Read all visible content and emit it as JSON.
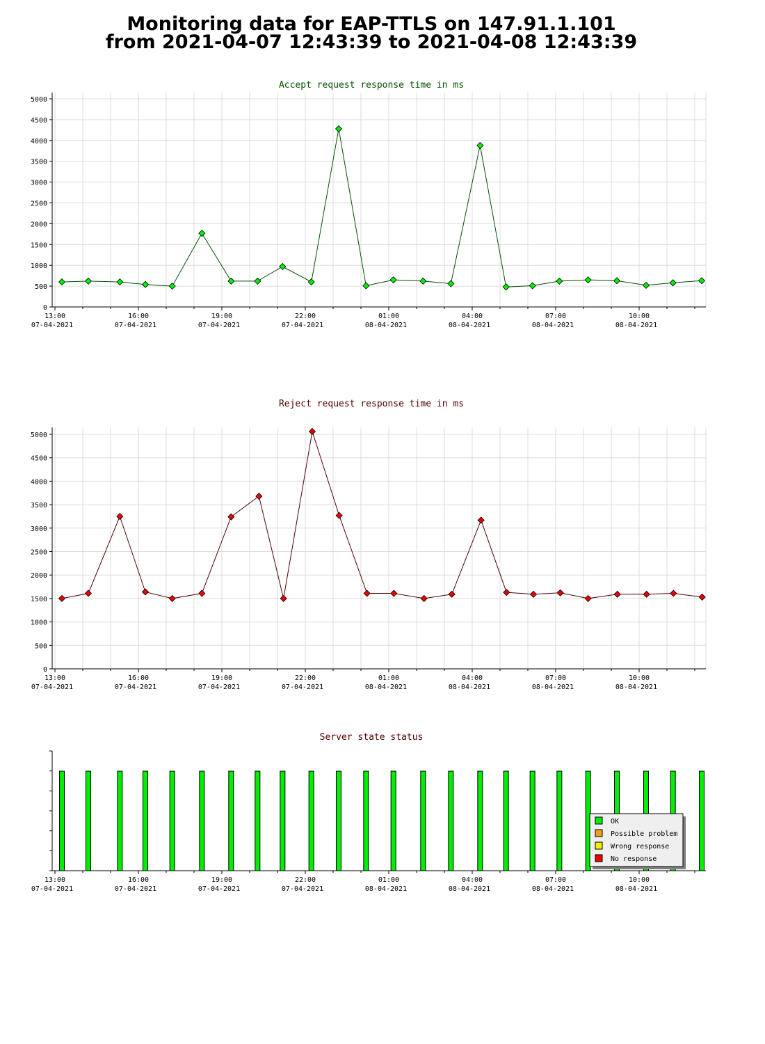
{
  "page": {
    "title_line1": "Monitoring data for EAP-TTLS on 147.91.1.101",
    "title_line2": "from 2021-04-07 12:43:39 to 2021-04-08 12:43:39"
  },
  "x_ticks": [
    {
      "time": "13:00",
      "date": "07-04-2021"
    },
    {
      "time": "16:00",
      "date": "07-04-2021"
    },
    {
      "time": "19:00",
      "date": "07-04-2021"
    },
    {
      "time": "22:00",
      "date": "07-04-2021"
    },
    {
      "time": "01:00",
      "date": "08-04-2021"
    },
    {
      "time": "04:00",
      "date": "08-04-2021"
    },
    {
      "time": "07:00",
      "date": "08-04-2021"
    },
    {
      "time": "10:00",
      "date": "08-04-2021"
    }
  ],
  "colors": {
    "accept_line": "#005000",
    "accept_marker": "#00ee00",
    "reject_line": "#500000",
    "reject_marker": "#ee0000",
    "ok": "#00ee00",
    "possible_problem": "#f0a020",
    "wrong_response": "#f0f000",
    "no_response": "#ee0000",
    "grid": "#dcdcdc"
  },
  "chart_data": [
    {
      "type": "line",
      "title": "Accept request response time in ms",
      "xlabel": "",
      "ylabel": "",
      "ylim": [
        0,
        5000
      ],
      "yticks": [
        "0",
        "500",
        "1000",
        "1500",
        "2000",
        "2500",
        "3000",
        "3500",
        "4000",
        "4500",
        "5000"
      ],
      "grid": true,
      "x": [
        "2021-04-07 13:15",
        "2021-04-07 14:12",
        "2021-04-07 15:20",
        "2021-04-07 16:15",
        "2021-04-07 17:13",
        "2021-04-07 18:17",
        "2021-04-07 19:20",
        "2021-04-07 20:17",
        "2021-04-07 21:11",
        "2021-04-07 22:13",
        "2021-04-07 23:12",
        "2021-04-08 00:11",
        "2021-04-08 01:10",
        "2021-04-08 02:14",
        "2021-04-08 03:14",
        "2021-04-08 04:17",
        "2021-04-08 05:13",
        "2021-04-08 06:10",
        "2021-04-08 07:08",
        "2021-04-08 08:10",
        "2021-04-08 09:12",
        "2021-04-08 10:15",
        "2021-04-08 11:13",
        "2021-04-08 12:15"
      ],
      "values": [
        600,
        620,
        600,
        540,
        500,
        1770,
        620,
        620,
        970,
        600,
        4280,
        510,
        650,
        620,
        560,
        3880,
        480,
        510,
        620,
        650,
        630,
        520,
        580,
        630
      ]
    },
    {
      "type": "line",
      "title": "Reject request response time in ms",
      "xlabel": "",
      "ylabel": "",
      "ylim": [
        0,
        5100
      ],
      "yticks": [
        "0",
        "500",
        "1000",
        "1500",
        "2000",
        "2500",
        "3000",
        "3500",
        "4000",
        "4500",
        "5000"
      ],
      "grid": true,
      "x": [
        "2021-04-07 13:15",
        "2021-04-07 14:12",
        "2021-04-07 15:20",
        "2021-04-07 16:15",
        "2021-04-07 17:13",
        "2021-04-07 18:17",
        "2021-04-07 19:20",
        "2021-04-07 20:20",
        "2021-04-07 21:13",
        "2021-04-07 22:15",
        "2021-04-07 23:13",
        "2021-04-08 00:13",
        "2021-04-08 01:11",
        "2021-04-08 02:16",
        "2021-04-08 03:16",
        "2021-04-08 04:19",
        "2021-04-08 05:14",
        "2021-04-08 06:12",
        "2021-04-08 07:10",
        "2021-04-08 08:10",
        "2021-04-08 09:13",
        "2021-04-08 10:16",
        "2021-04-08 11:14",
        "2021-04-08 12:16"
      ],
      "values": [
        1500,
        1610,
        3250,
        1640,
        1500,
        1610,
        3240,
        3680,
        1500,
        5060,
        3270,
        1610,
        1610,
        1500,
        1590,
        3170,
        1630,
        1590,
        1620,
        1500,
        1590,
        1590,
        1610,
        1530
      ]
    },
    {
      "type": "bar",
      "title": "Server state status",
      "xlabel": "",
      "ylabel": "",
      "grid": false,
      "legend": [
        "OK",
        "Possible problem",
        "Wrong response",
        "No response"
      ],
      "legend_position": "bottom-right",
      "x": [
        "2021-04-07 13:15",
        "2021-04-07 14:12",
        "2021-04-07 15:20",
        "2021-04-07 16:15",
        "2021-04-07 17:13",
        "2021-04-07 18:17",
        "2021-04-07 19:20",
        "2021-04-07 20:17",
        "2021-04-07 21:11",
        "2021-04-07 22:13",
        "2021-04-07 23:12",
        "2021-04-08 00:11",
        "2021-04-08 01:10",
        "2021-04-08 02:14",
        "2021-04-08 03:14",
        "2021-04-08 04:17",
        "2021-04-08 05:13",
        "2021-04-08 06:10",
        "2021-04-08 07:08",
        "2021-04-08 08:10",
        "2021-04-08 09:12",
        "2021-04-08 10:15",
        "2021-04-08 11:13",
        "2021-04-08 12:15"
      ],
      "status": [
        "OK",
        "OK",
        "OK",
        "OK",
        "OK",
        "OK",
        "OK",
        "OK",
        "OK",
        "OK",
        "OK",
        "OK",
        "OK",
        "OK",
        "OK",
        "OK",
        "OK",
        "OK",
        "OK",
        "OK",
        "OK",
        "OK",
        "OK",
        "OK"
      ]
    }
  ]
}
